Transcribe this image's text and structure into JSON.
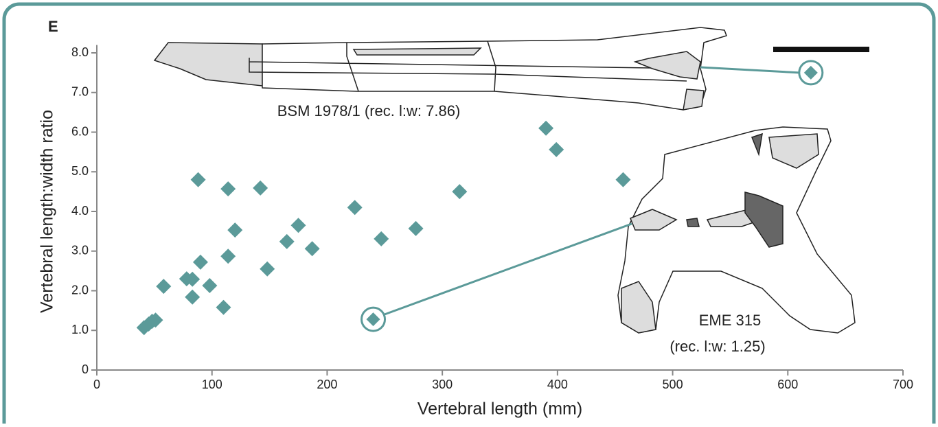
{
  "chart_data": {
    "type": "scatter",
    "panel_label": "E",
    "x_label": "Vertebral length (mm)",
    "y_label": "Vertebral length:width ratio",
    "color": "#5b9a99",
    "xlim": [
      0,
      700
    ],
    "xticks": [
      0,
      100,
      200,
      300,
      400,
      500,
      600,
      700
    ],
    "ylim": [
      0,
      8.2
    ],
    "yticks": [
      0,
      {
        "value": 1,
        "label": "1.0"
      },
      {
        "value": 2,
        "label": "2.0"
      },
      {
        "value": 3,
        "label": "3.0"
      },
      {
        "value": 4,
        "label": "4.0"
      },
      {
        "value": 5,
        "label": "5.0"
      },
      {
        "value": 6,
        "label": "6.0"
      },
      {
        "value": 7,
        "label": "7.0"
      },
      {
        "value": 8,
        "label": "8.0"
      }
    ],
    "x": [
      41,
      45,
      48,
      51,
      58,
      78,
      83,
      83,
      88,
      90,
      98,
      110,
      114,
      114,
      120,
      142,
      148,
      165,
      175,
      187,
      224,
      247,
      277,
      315,
      390,
      399,
      457
    ],
    "values": [
      1.07,
      1.16,
      1.23,
      1.26,
      2.11,
      2.3,
      2.29,
      1.84,
      4.8,
      2.72,
      2.13,
      1.58,
      4.57,
      2.87,
      3.53,
      4.59,
      2.55,
      3.24,
      3.65,
      3.06,
      4.1,
      3.31,
      3.57,
      4.5,
      6.1,
      5.56,
      4.8
    ],
    "highlights": [
      {
        "x": 620,
        "y": 7.5,
        "label": [
          "BSM 1978/1 (rec. l:w: 7.86)"
        ]
      },
      {
        "x": 240,
        "y": 1.28,
        "label": [
          "EME 315",
          "(rec. l:w: 1.25)"
        ]
      }
    ]
  }
}
